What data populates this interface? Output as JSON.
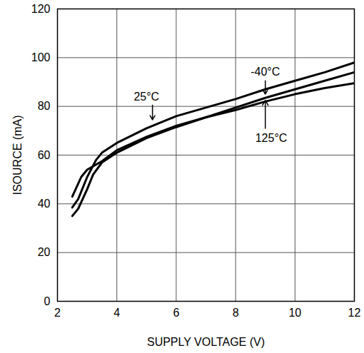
{
  "chart_data": {
    "type": "line",
    "x_label": "SUPPLY VOLTAGE (V)",
    "y_label": "ISOURCE (mA)",
    "xlim": [
      2,
      12
    ],
    "ylim": [
      0,
      120
    ],
    "xticks": [
      2,
      4,
      6,
      8,
      10,
      12
    ],
    "yticks": [
      0,
      20,
      40,
      60,
      80,
      100,
      120
    ],
    "grid": true,
    "series": [
      {
        "name": "25°C",
        "color": "#000000",
        "x": [
          2.5,
          2.7,
          3,
          3.3,
          3.5,
          4,
          5,
          6,
          7,
          8,
          9,
          10,
          11,
          12
        ],
        "values": [
          38.5,
          42,
          51,
          58,
          61,
          65,
          71,
          76,
          79.5,
          83,
          87,
          90.5,
          94,
          98
        ]
      },
      {
        "name": "-40°C",
        "color": "#000000",
        "x": [
          2.5,
          2.7,
          3,
          3.2,
          3.5,
          4,
          5,
          6,
          7,
          8,
          9,
          10,
          11,
          12
        ],
        "values": [
          35,
          38,
          46,
          52,
          57,
          61,
          67,
          71.5,
          75.5,
          79.5,
          83.5,
          87,
          90.5,
          94
        ]
      },
      {
        "name": "125°C",
        "color": "#000000",
        "x": [
          2.5,
          2.8,
          3,
          3.5,
          4,
          5,
          6,
          7,
          8,
          9,
          10,
          11,
          12
        ],
        "values": [
          43,
          51,
          54,
          57.5,
          62,
          67.5,
          72,
          75.5,
          78.5,
          82,
          85,
          87.5,
          89.5
        ]
      }
    ],
    "annotations": [
      {
        "text": "25°C",
        "x": 5,
        "y": 84,
        "arrow_from": [
          5.2,
          80.5
        ],
        "arrow_to": [
          5.2,
          74.5
        ]
      },
      {
        "text": "-40°C",
        "x": 9,
        "y": 94,
        "arrow_from": [
          9,
          90.5
        ],
        "arrow_to": [
          9,
          85
        ]
      },
      {
        "text": "125°C",
        "x": 9.2,
        "y": 67,
        "arrow_from": [
          9,
          71
        ],
        "arrow_to": [
          9,
          82.5
        ]
      }
    ]
  }
}
